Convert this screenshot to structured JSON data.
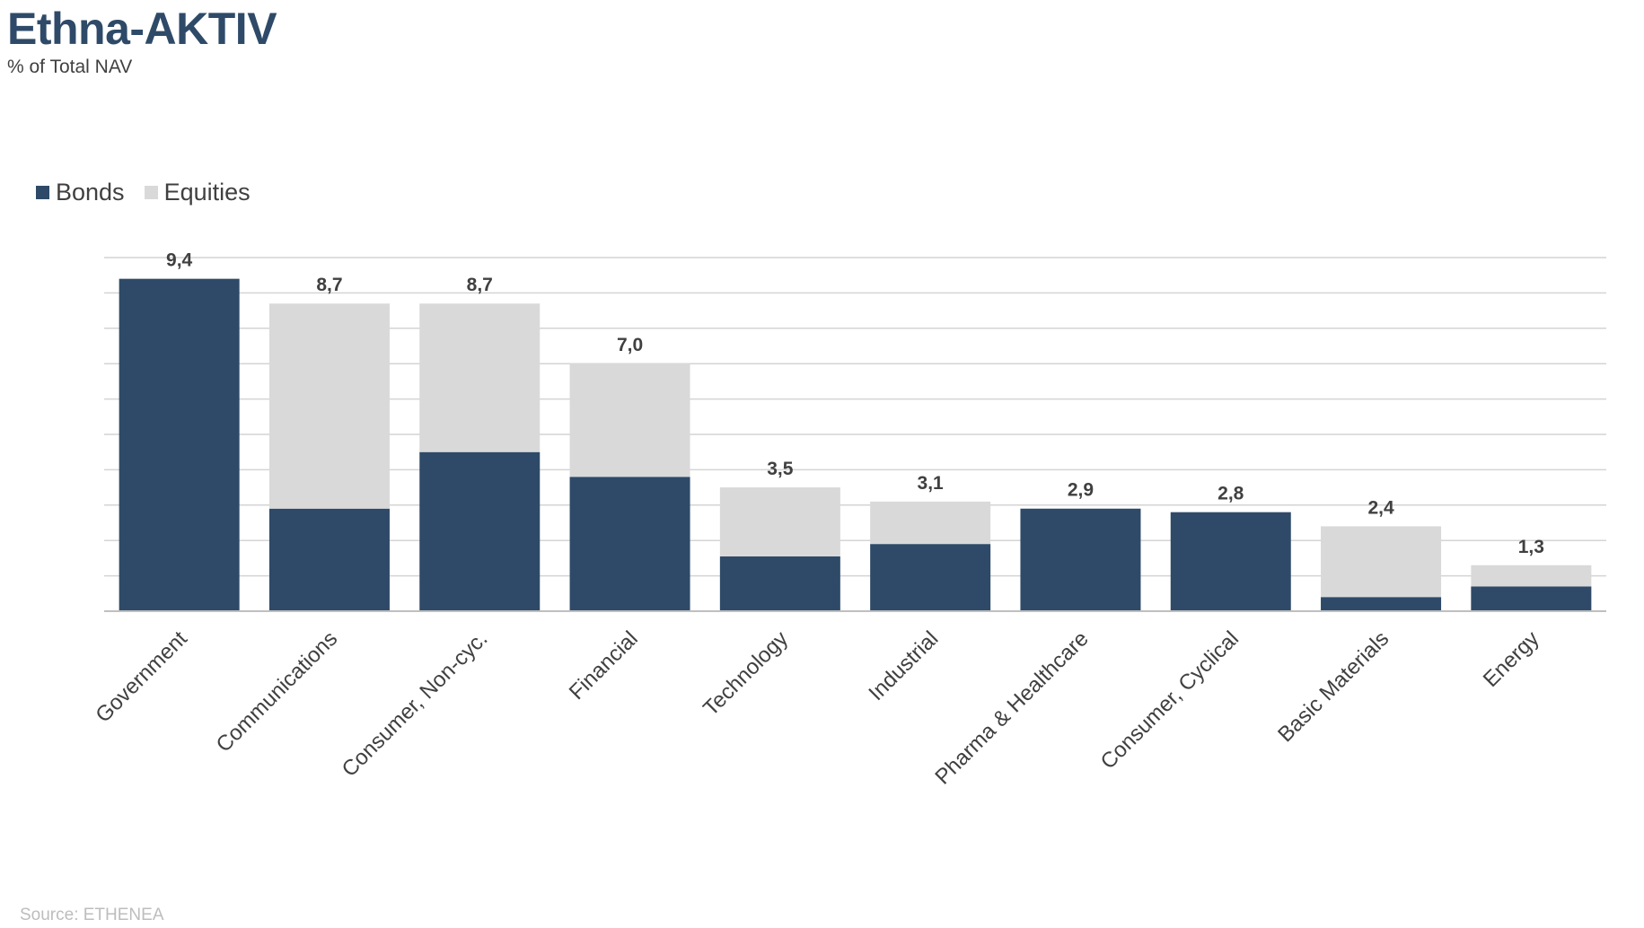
{
  "header": {
    "title": "Ethna-AKTIV",
    "subtitle": "% of Total NAV"
  },
  "footer": {
    "source": "Source: ETHENEA"
  },
  "colors": {
    "bonds": "#2e4a68",
    "equities": "#d9d9d9",
    "grid": "#d4d4d4",
    "axis": "#bfbfbf"
  },
  "chart_data": {
    "type": "bar",
    "stacked": true,
    "title": "Ethna-AKTIV",
    "subtitle": "% of Total NAV",
    "legend_position": "top-left",
    "grid": true,
    "ylim": [
      0,
      10
    ],
    "y_axis_labels_visible": false,
    "categories": [
      "Government",
      "Communications",
      "Consumer, Non-cyc.",
      "Financial",
      "Technology",
      "Industrial",
      "Pharma & Healthcare",
      "Consumer, Cyclical",
      "Basic Materials",
      "Energy"
    ],
    "series": [
      {
        "name": "Bonds",
        "values": [
          9.4,
          2.9,
          4.5,
          3.8,
          1.55,
          1.9,
          2.9,
          2.8,
          0.4,
          0.7
        ]
      },
      {
        "name": "Equities",
        "values": [
          0.0,
          5.8,
          4.2,
          3.2,
          1.95,
          1.2,
          0.0,
          0.0,
          2.0,
          0.6
        ]
      }
    ],
    "totals": [
      "9,4",
      "8,7",
      "8,7",
      "7,0",
      "3,5",
      "3,1",
      "2,9",
      "2,8",
      "2,4",
      "1,3"
    ]
  }
}
